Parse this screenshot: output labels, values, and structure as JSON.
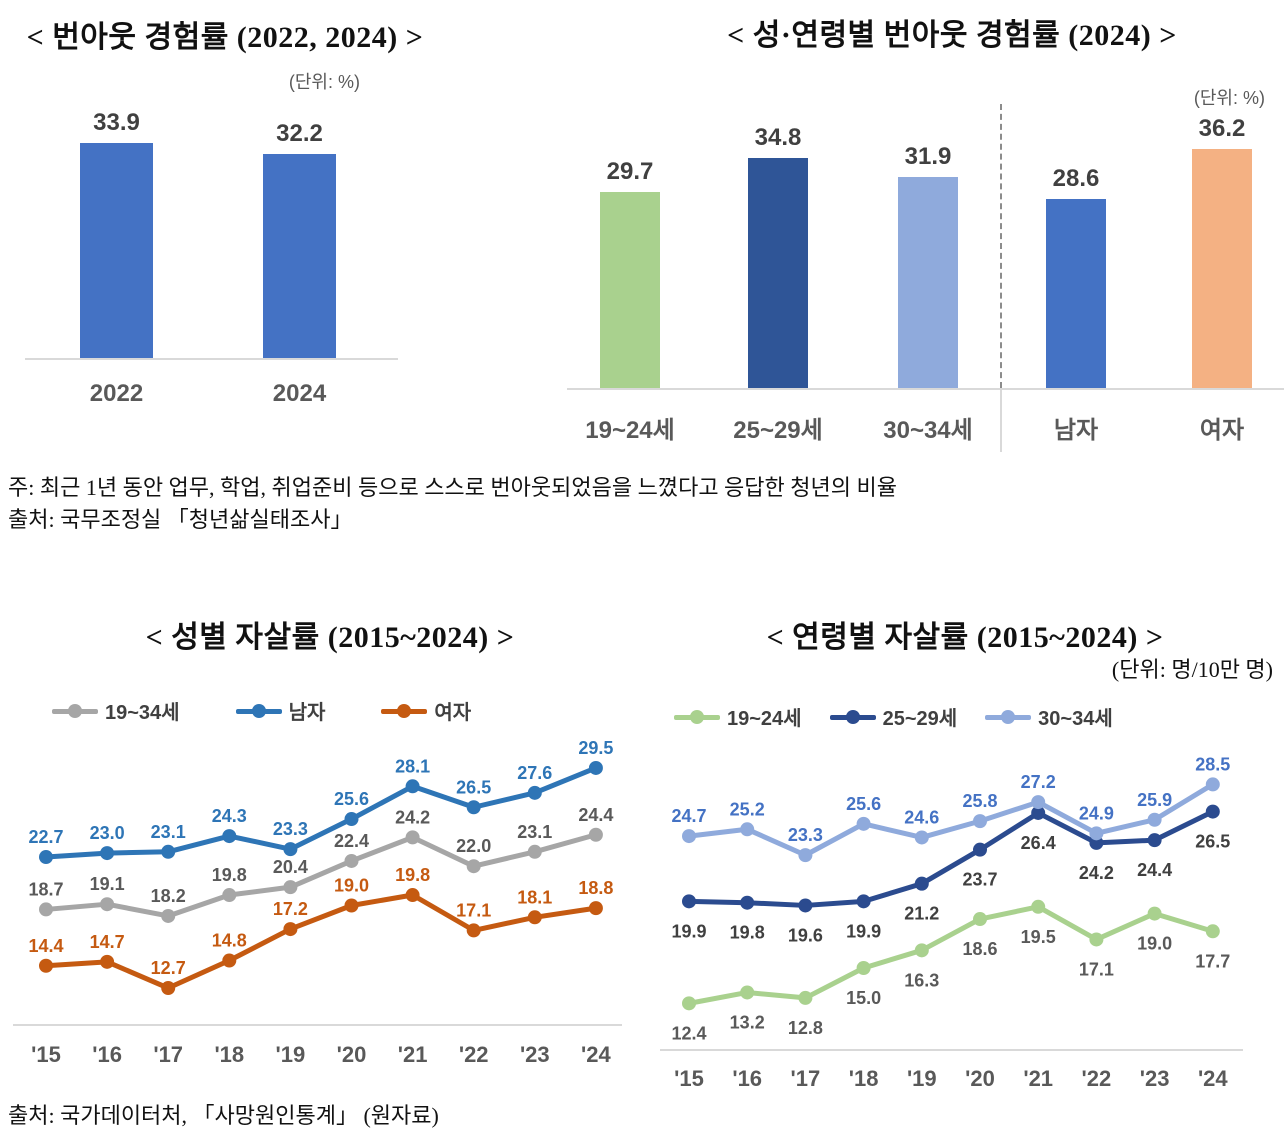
{
  "page": {
    "notes_line1": "주: 최근 1년 동안 업무, 학업, 취업준비 등으로 스스로 번아웃되었음을 느꼈다고 응답한 청년의 비율",
    "notes_line2": "출처: 국무조정실 「청년삶실태조사」",
    "source_bottom": "출처: 국가데이터처, 「사망원인통계」 (원자료)"
  },
  "chart_data": [
    {
      "id": "burnout_total",
      "type": "bar",
      "title": "< 번아웃 경험률 (2022, 2024) >",
      "unit": "(단위: %)",
      "categories": [
        "2022",
        "2024"
      ],
      "values": [
        33.9,
        32.2
      ],
      "bar_colors": [
        "#4472C4",
        "#4472C4"
      ],
      "ylim": [
        0,
        40
      ]
    },
    {
      "id": "burnout_by_sex_age",
      "type": "bar",
      "title": "< 성·연령별 번아웃 경험률 (2024) >",
      "unit": "(단위: %)",
      "categories": [
        "19~24세",
        "25~29세",
        "30~34세",
        "남자",
        "여자"
      ],
      "values": [
        29.7,
        34.8,
        31.9,
        28.6,
        36.2
      ],
      "bar_colors": [
        "#A9D18E",
        "#2F5597",
        "#8FAADC",
        "#4472C4",
        "#F4B183"
      ],
      "divider_after": "30~34세",
      "ylim": [
        0,
        42
      ]
    },
    {
      "id": "suicide_by_sex",
      "type": "line",
      "title": "< 성별 자살률 (2015~2024) >",
      "x": [
        "'15",
        "'16",
        "'17",
        "'18",
        "'19",
        "'20",
        "'21",
        "'22",
        "'23",
        "'24"
      ],
      "legend_order": [
        "19~34세",
        "남자",
        "여자"
      ],
      "legend_position": "top",
      "grid": false,
      "series": [
        {
          "name": "19~34세",
          "color": "#A6A6A6",
          "label_color": "#595959",
          "label_side": "above",
          "values": [
            18.7,
            19.1,
            18.2,
            19.8,
            20.4,
            22.4,
            24.2,
            22.0,
            23.1,
            24.4
          ]
        },
        {
          "name": "남자",
          "color": "#2E75B6",
          "label_color": "#2E75B6",
          "label_side": "above",
          "values": [
            22.7,
            23.0,
            23.1,
            24.3,
            23.3,
            25.6,
            28.1,
            26.5,
            27.6,
            29.5
          ]
        },
        {
          "name": "여자",
          "color": "#C55A11",
          "label_color": "#C55A11",
          "label_side": "above",
          "values": [
            14.4,
            14.7,
            12.7,
            14.8,
            17.2,
            19.0,
            19.8,
            17.1,
            18.1,
            18.8
          ]
        }
      ]
    },
    {
      "id": "suicide_by_age",
      "type": "line",
      "title": "< 연령별 자살률 (2015~2024) >",
      "unit": "(단위: 명/10만 명)",
      "x": [
        "'15",
        "'16",
        "'17",
        "'18",
        "'19",
        "'20",
        "'21",
        "'22",
        "'23",
        "'24"
      ],
      "legend_order": [
        "19~24세",
        "25~29세",
        "30~34세"
      ],
      "legend_position": "top",
      "grid": false,
      "series": [
        {
          "name": "19~24세",
          "color": "#A9D18E",
          "label_color": "#595959",
          "label_side": "below",
          "values": [
            12.4,
            13.2,
            12.8,
            15.0,
            16.3,
            18.6,
            19.5,
            17.1,
            19.0,
            17.7
          ]
        },
        {
          "name": "25~29세",
          "color": "#2B4B8F",
          "label_color": "#404040",
          "label_side": "below",
          "values": [
            19.9,
            19.8,
            19.6,
            19.9,
            21.2,
            23.7,
            26.4,
            24.2,
            24.4,
            26.5
          ]
        },
        {
          "name": "30~34세",
          "color": "#8FAADC",
          "label_color": "#4472C4",
          "label_side": "above",
          "values": [
            24.7,
            25.2,
            23.3,
            25.6,
            24.6,
            25.8,
            27.2,
            24.9,
            25.9,
            28.5
          ]
        }
      ]
    }
  ]
}
